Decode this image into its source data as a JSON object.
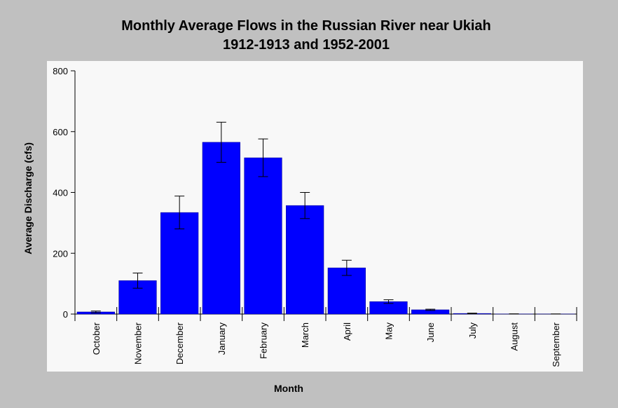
{
  "chart_data": {
    "type": "bar",
    "title": "Monthly Average Flows in the  Russian River near Ukiah",
    "subtitle": "1912-1913 and 1952-2001",
    "x_label": "Month",
    "y_label": "Average Discharge (cfs)",
    "categories": [
      "October",
      "November",
      "December",
      "January",
      "February",
      "March",
      "April",
      "May",
      "June",
      "July",
      "August",
      "September"
    ],
    "values": [
      7,
      110,
      334,
      565,
      514,
      357,
      152,
      41,
      14,
      2,
      0.5,
      0.3
    ],
    "errors": [
      3,
      25,
      54,
      66,
      62,
      43,
      25,
      6,
      2,
      1,
      0.2,
      0.1
    ],
    "color": "#0000ff",
    "ylim": [
      0,
      800
    ],
    "yticks": [
      0,
      200,
      400,
      600,
      800
    ]
  }
}
